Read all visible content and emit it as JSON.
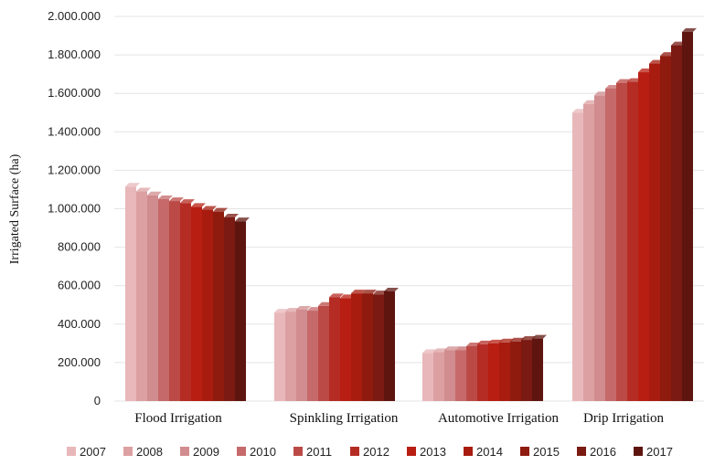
{
  "chart_data": {
    "type": "bar",
    "title": "",
    "xlabel": "",
    "ylabel": "Irrigated Surface (ha)",
    "ylim": [
      0,
      2000000
    ],
    "y_ticks": [
      0,
      200000,
      400000,
      600000,
      800000,
      1000000,
      1200000,
      1400000,
      1600000,
      1800000,
      2000000
    ],
    "y_tick_labels": [
      "0",
      "200.000",
      "400.000",
      "600.000",
      "800.000",
      "1.000.000",
      "1.200.000",
      "1.400.000",
      "1.600.000",
      "1.800.000",
      "2.000.000"
    ],
    "grid": true,
    "legend_position": "bottom",
    "categories": [
      "Flood Irrigation",
      "Spinkling Irrigation",
      "Automotive Irrigation",
      "Drip Irrigation"
    ],
    "series": [
      {
        "name": "2007",
        "color": "#e8b7b9",
        "values": [
          1115000,
          460000,
          250000,
          1500000
        ]
      },
      {
        "name": "2008",
        "color": "#dca0a2",
        "values": [
          1090000,
          465000,
          255000,
          1545000
        ]
      },
      {
        "name": "2009",
        "color": "#d08c8e",
        "values": [
          1070000,
          475000,
          265000,
          1590000
        ]
      },
      {
        "name": "2010",
        "color": "#c6696b",
        "values": [
          1050000,
          470000,
          265000,
          1625000
        ]
      },
      {
        "name": "2011",
        "color": "#bb4a46",
        "values": [
          1040000,
          495000,
          285000,
          1655000
        ]
      },
      {
        "name": "2012",
        "color": "#b52c24",
        "values": [
          1030000,
          540000,
          295000,
          1660000
        ]
      },
      {
        "name": "2013",
        "color": "#b81e12",
        "values": [
          1010000,
          535000,
          300000,
          1710000
        ]
      },
      {
        "name": "2014",
        "color": "#a81c0f",
        "values": [
          995000,
          560000,
          305000,
          1755000
        ]
      },
      {
        "name": "2015",
        "color": "#8f1a0e",
        "values": [
          985000,
          560000,
          310000,
          1795000
        ]
      },
      {
        "name": "2016",
        "color": "#7a1a12",
        "values": [
          955000,
          555000,
          318000,
          1850000
        ]
      },
      {
        "name": "2017",
        "color": "#5e1510",
        "values": [
          935000,
          570000,
          325000,
          1920000
        ]
      }
    ]
  }
}
